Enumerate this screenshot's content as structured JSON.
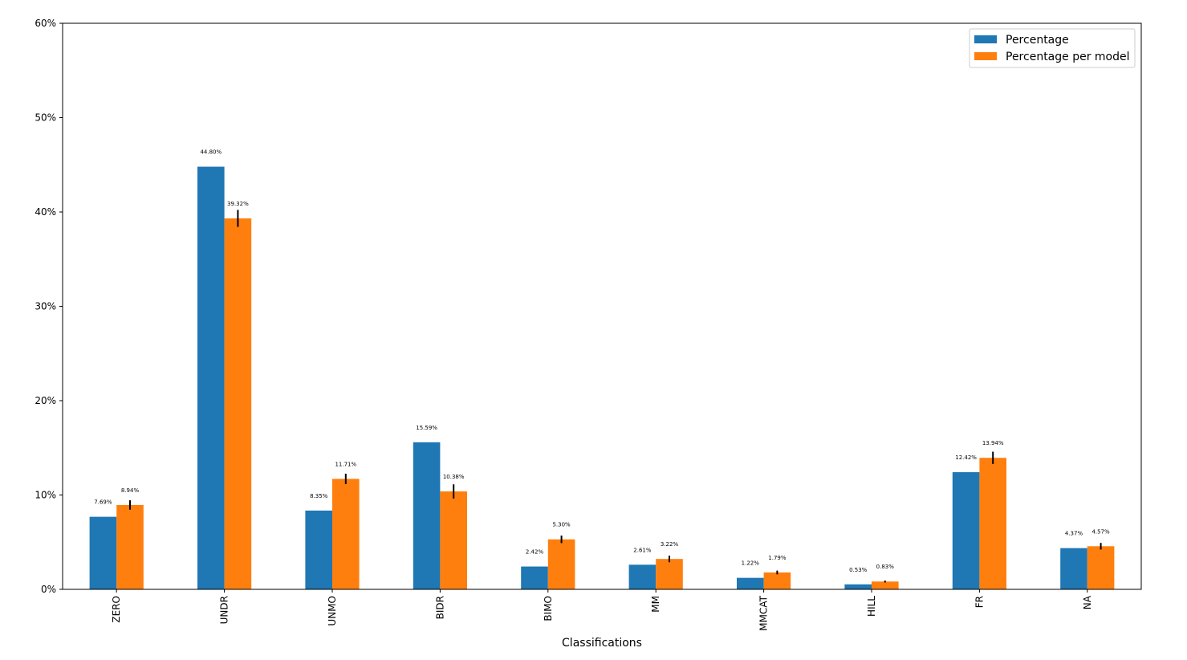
{
  "chart_data": {
    "type": "bar",
    "xlabel": "Classifications",
    "ylabel": "",
    "ylim": [
      0,
      60
    ],
    "y_ticks": [
      0,
      10,
      20,
      30,
      40,
      50,
      60
    ],
    "y_tick_labels": [
      "0%",
      "10%",
      "20%",
      "30%",
      "40%",
      "50%",
      "60%"
    ],
    "categories": [
      "ZERO",
      "UNDR",
      "UNMO",
      "BIDR",
      "BIMO",
      "MM",
      "MMCAT",
      "HILL",
      "FR",
      "NA"
    ],
    "series": [
      {
        "name": "Percentage",
        "color": "#1f77b4",
        "values": [
          7.69,
          44.8,
          8.35,
          15.59,
          2.42,
          2.61,
          1.22,
          0.53,
          12.42,
          4.37
        ],
        "labels": [
          "7.69%",
          "44.80%",
          "8.35%",
          "15.59%",
          "2.42%",
          "2.61%",
          "1.22%",
          "0.53%",
          "12.42%",
          "4.37%"
        ]
      },
      {
        "name": "Percentage per model",
        "color": "#ff7f0e",
        "values": [
          8.94,
          39.32,
          11.71,
          10.38,
          5.3,
          3.22,
          1.79,
          0.83,
          13.94,
          4.57
        ],
        "errors": [
          0.5,
          0.9,
          0.55,
          0.75,
          0.4,
          0.35,
          0.2,
          0.1,
          0.65,
          0.35
        ],
        "labels": [
          "8.94%",
          "39.32%",
          "11.71%",
          "10.38%",
          "5.30%",
          "3.22%",
          "1.79%",
          "0.83%",
          "13.94%",
          "4.57%"
        ]
      }
    ],
    "grid": false,
    "legend_position": "top-right"
  }
}
